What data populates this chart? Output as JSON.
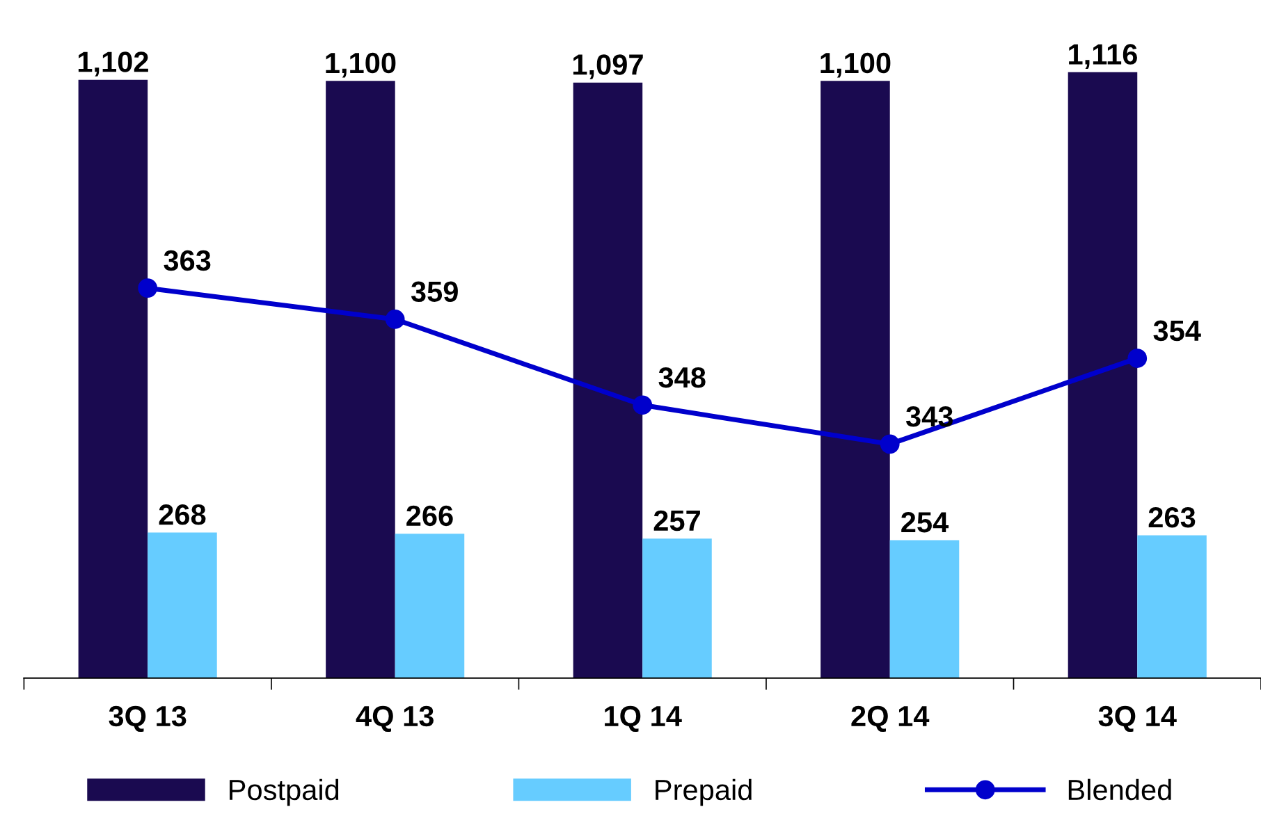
{
  "chart_data": {
    "type": "bar",
    "categories": [
      "3Q 13",
      "4Q 13",
      "1Q 14",
      "2Q 14",
      "3Q 14"
    ],
    "series": [
      {
        "name": "Postpaid",
        "color": "#1a0a50",
        "values": [
          1102,
          1100,
          1097,
          1100,
          1116
        ],
        "value_labels": [
          "1,102",
          "1,100",
          "1,097",
          "1,100",
          "1,116"
        ]
      },
      {
        "name": "Prepaid",
        "color": "#66ccff",
        "values": [
          268,
          266,
          257,
          254,
          263
        ],
        "value_labels": [
          "268",
          "266",
          "257",
          "254",
          "263"
        ]
      },
      {
        "name": "Blended",
        "type": "line",
        "axis": "y2",
        "color": "#0000cc",
        "marker": "circle",
        "values": [
          363,
          359,
          348,
          343,
          354
        ],
        "value_labels": [
          "363",
          "359",
          "348",
          "343",
          "354"
        ]
      }
    ],
    "tick_labels": "x",
    "legend": "bottom",
    "grid": false
  }
}
